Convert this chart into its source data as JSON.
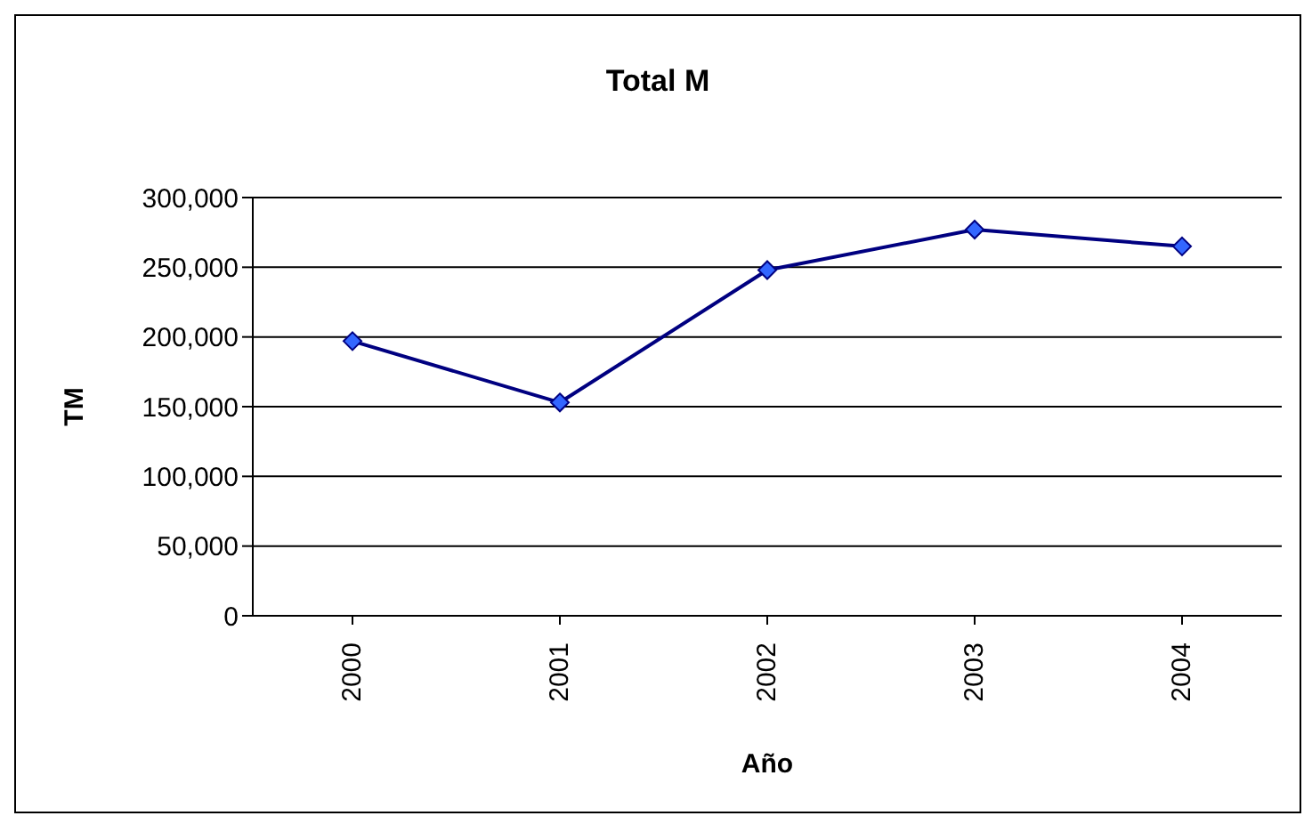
{
  "chart_data": {
    "type": "line",
    "title": "Total M",
    "xlabel": "Año",
    "ylabel": "TM",
    "categories": [
      "2000",
      "2001",
      "2002",
      "2003",
      "2004"
    ],
    "series": [
      {
        "color": "#000080",
        "values": [
          197000,
          153000,
          248000,
          277000,
          265000
        ]
      }
    ],
    "ylim": [
      0,
      300000
    ],
    "yticks": [
      {
        "value": 0,
        "label": "0"
      },
      {
        "value": 50000,
        "label": "50,000"
      },
      {
        "value": 100000,
        "label": "100,000"
      },
      {
        "value": 150000,
        "label": "150,000"
      },
      {
        "value": 200000,
        "label": "200,000"
      },
      {
        "value": 250000,
        "label": "250,000"
      },
      {
        "value": 300000,
        "label": "300,000"
      }
    ],
    "grid": "y",
    "marker": "diamond",
    "legend": false
  }
}
